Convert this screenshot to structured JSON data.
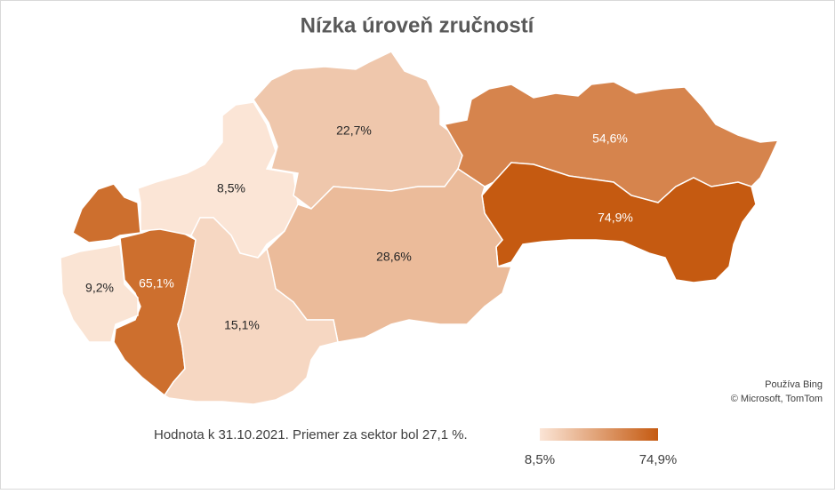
{
  "chart_data": {
    "type": "choropleth",
    "title": "Nízka úroveň zručností",
    "values": [
      65.1,
      9.2,
      8.5,
      22.7,
      54.6,
      74.9,
      28.6,
      15.1
    ],
    "value_labels": [
      "65,1%",
      "9,2%",
      "8,5%",
      "22,7%",
      "54,6%",
      "74,9%",
      "28,6%",
      "15,1%"
    ],
    "colors": [
      "#fbe5d6",
      "#c55a11"
    ],
    "colorbar_ticks": [
      {
        "value": 8.5,
        "label": "8,5%"
      },
      {
        "value": 74.9,
        "label": "74,9%"
      }
    ],
    "note": "Hodnota k 31.10.2021. Priemer za sektor bol 27,1 %.",
    "attribution": [
      "Používa Bing",
      "© Microsoft, TomTom"
    ]
  }
}
